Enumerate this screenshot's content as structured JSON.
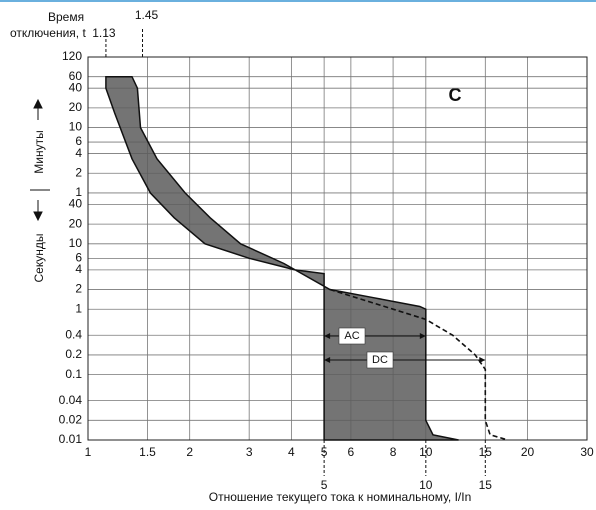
{
  "chart_data": {
    "type": "line",
    "title_lines": [
      "Время",
      "отключения, t"
    ],
    "curve_class": "C",
    "y_labels": [
      "Минуты",
      "Секунды"
    ],
    "xlabel": "Отношение текущего тока к номинальному, I/In",
    "log_x": true,
    "log_y": true,
    "grid": true,
    "xlim": [
      1,
      30
    ],
    "xticks": [
      1,
      1.5,
      2,
      3,
      4,
      5,
      6,
      8,
      10,
      15,
      20,
      30
    ],
    "ylim": [
      0.01,
      7200
    ],
    "yticks": [
      {
        "value": 7200,
        "label": "120"
      },
      {
        "value": 3600,
        "label": "60"
      },
      {
        "value": 2400,
        "label": "40"
      },
      {
        "value": 1200,
        "label": "20"
      },
      {
        "value": 600,
        "label": "10"
      },
      {
        "value": 360,
        "label": "6"
      },
      {
        "value": 240,
        "label": "4"
      },
      {
        "value": 120,
        "label": "2"
      },
      {
        "value": 60,
        "label": "1"
      },
      40,
      20,
      10,
      6,
      4,
      2,
      1,
      0.4,
      0.2,
      0.1,
      0.04,
      0.02,
      0.01
    ],
    "markers_top": [
      1.13,
      1.45
    ],
    "markers_bottom": [
      5,
      10,
      15
    ],
    "annotations": [
      "AC",
      "DC"
    ],
    "band": {
      "color": "#5c5c5c",
      "left_x": [
        1.13,
        1.13,
        1.2,
        1.35,
        1.53,
        1.8,
        2.22,
        3,
        4.1,
        5,
        5
      ],
      "left_y": [
        3600,
        2400,
        1000,
        200,
        60,
        25,
        10,
        6,
        4,
        3.5,
        0.01
      ],
      "right_x": [
        1.35,
        1.4,
        1.43,
        1.6,
        1.94,
        2.3,
        2.83,
        3.8,
        5.2,
        7,
        9.6,
        10,
        10,
        10.5,
        12.5
      ],
      "right_y": [
        3600,
        2400,
        600,
        200,
        60,
        25,
        10,
        5,
        2,
        1.5,
        1.1,
        1,
        0.02,
        0.012,
        0.01
      ]
    },
    "dc_curve": {
      "color": "#111",
      "dashed": true,
      "x": [
        5.2,
        8,
        10,
        12,
        14,
        15,
        15,
        15.5,
        17.5
      ],
      "y": [
        2,
        1,
        0.7,
        0.4,
        0.2,
        0.12,
        0.02,
        0.012,
        0.01
      ]
    }
  }
}
